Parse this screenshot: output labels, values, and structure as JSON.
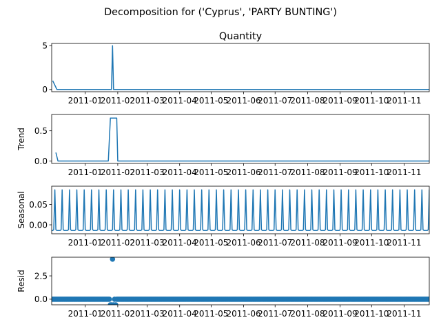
{
  "figure": {
    "suptitle": "Decomposition for ('Cyprus', 'PARTY BUNTING')",
    "line_color": "#1f77b4"
  },
  "chart_data": [
    {
      "type": "line",
      "name": "observed",
      "title": "Quantity",
      "ylabel": "",
      "ylim": [
        -0.25,
        5.25
      ],
      "yticks": [
        0,
        5
      ],
      "ytick_labels": [
        "0",
        "5"
      ],
      "xlim_days": [
        0,
        337
      ],
      "x_dates": [
        "2010-12-01",
        "2010-12-05",
        "2011-01-26",
        "2011-01-27",
        "2011-01-28",
        "2011-12-01",
        "2011-12-09"
      ],
      "y": [
        1,
        0,
        0,
        5,
        0,
        0,
        1
      ]
    },
    {
      "type": "line",
      "name": "trend",
      "title": "",
      "ylabel": "Trend",
      "ylim": [
        -0.04,
        0.77
      ],
      "yticks": [
        0,
        0.5
      ],
      "ytick_labels": [
        "0.0",
        "0.5"
      ],
      "x_dates": [
        "2010-12-04",
        "2010-12-06",
        "2011-01-23",
        "2011-01-25",
        "2011-01-30",
        "2011-01-31",
        "2011-02-01",
        "2011-12-04",
        "2011-12-06"
      ],
      "y": [
        0.14,
        0,
        0,
        0.71,
        0.71,
        0.71,
        0,
        0,
        0.14
      ]
    },
    {
      "type": "line",
      "name": "seasonal",
      "title": "",
      "ylabel": "Seasonal",
      "ylim": [
        -0.022,
        0.095
      ],
      "yticks": [
        0,
        0.05
      ],
      "ytick_labels": [
        "0.00",
        "0.05"
      ],
      "period_days": 7,
      "peak_value": 0.086,
      "base_value": -0.014
    },
    {
      "type": "scatter",
      "name": "resid",
      "title": "",
      "ylabel": "Resid",
      "ylim": [
        -0.6,
        4.5
      ],
      "yticks": [
        0,
        2.5
      ],
      "ytick_labels": [
        "0.0",
        "2.5"
      ],
      "baseline_value": 0,
      "outliers": [
        {
          "date": "2011-01-25",
          "y": -0.6
        },
        {
          "date": "2011-01-26",
          "y": -0.6
        },
        {
          "date": "2011-01-27",
          "y": 4.29
        },
        {
          "date": "2011-01-28",
          "y": -0.6
        },
        {
          "date": "2011-01-30",
          "y": -0.6
        }
      ]
    }
  ],
  "x_axis": {
    "tick_dates": [
      "2011-01-01",
      "2011-02-01",
      "2011-03-01",
      "2011-04-01",
      "2011-05-01",
      "2011-06-01",
      "2011-07-01",
      "2011-08-01",
      "2011-09-01",
      "2011-10-01",
      "2011-11-01"
    ],
    "tick_labels": [
      "2011-01",
      "2011-02",
      "2011-03",
      "2011-04",
      "2011-05",
      "2011-06",
      "2011-07",
      "2011-08",
      "2011-09",
      "2011-10",
      "2011-11"
    ],
    "range_dates": [
      "2010-11-30",
      "2011-11-25"
    ]
  }
}
